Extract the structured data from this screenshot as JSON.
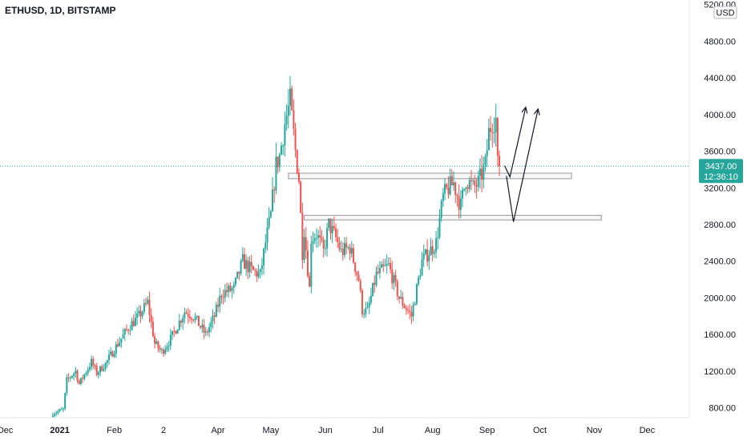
{
  "symbol_title": "ETHUSD, 1D, BITSTAMP",
  "currency": "USD",
  "colors": {
    "up": "#26a69a",
    "down": "#ef5350",
    "price_line": "#26a69a",
    "axis_text": "#131722",
    "zone_stroke": "#9598a1",
    "arrow": "#131722"
  },
  "chart_data": {
    "type": "candlestick",
    "y_axis": {
      "min": 700,
      "max": 5250,
      "ticks": [
        800,
        1200,
        1600,
        2000,
        2400,
        2800,
        3200,
        3600,
        4000,
        4400,
        4800,
        5200
      ],
      "tick_labels": [
        "800.00",
        "1200.00",
        "1600.00",
        "2000.00",
        "2400.00",
        "2800.00",
        "3200.00",
        "3600.00",
        "4000.00",
        "4400.00",
        "4800.00",
        "5200.00"
      ]
    },
    "x_axis": {
      "start": "2020-11-28",
      "end": "2021-12-25",
      "ticks": [
        {
          "date": "2020-12-01",
          "label": "Dec"
        },
        {
          "date": "2021-01-01",
          "label": "2021"
        },
        {
          "date": "2021-02-01",
          "label": "Feb"
        },
        {
          "date": "2021-03-01",
          "label": "2"
        },
        {
          "date": "2021-04-01",
          "label": "Apr"
        },
        {
          "date": "2021-05-01",
          "label": "May"
        },
        {
          "date": "2021-06-01",
          "label": "Jun"
        },
        {
          "date": "2021-07-01",
          "label": "Jul"
        },
        {
          "date": "2021-08-01",
          "label": "Aug"
        },
        {
          "date": "2021-09-01",
          "label": "Sep"
        },
        {
          "date": "2021-10-01",
          "label": "Oct"
        },
        {
          "date": "2021-11-01",
          "label": "Nov"
        },
        {
          "date": "2021-12-01",
          "label": "Dec"
        }
      ]
    },
    "series": {
      "start_date": "2020-12-28",
      "interval": "1D",
      "close_path": [
        [
          "2020-12-28",
          740
        ],
        [
          "2021-01-03",
          780
        ],
        [
          "2021-01-05",
          1100
        ],
        [
          "2021-01-10",
          1200
        ],
        [
          "2021-01-12",
          1060
        ],
        [
          "2021-01-19",
          1300
        ],
        [
          "2021-01-22",
          1180
        ],
        [
          "2021-01-27",
          1280
        ],
        [
          "2021-02-03",
          1500
        ],
        [
          "2021-02-10",
          1700
        ],
        [
          "2021-02-15",
          1800
        ],
        [
          "2021-02-20",
          1950
        ],
        [
          "2021-02-24",
          1500
        ],
        [
          "2021-02-28",
          1410
        ],
        [
          "2021-03-05",
          1550
        ],
        [
          "2021-03-13",
          1850
        ],
        [
          "2021-03-18",
          1800
        ],
        [
          "2021-03-25",
          1600
        ],
        [
          "2021-03-30",
          1800
        ],
        [
          "2021-04-03",
          2050
        ],
        [
          "2021-04-10",
          2100
        ],
        [
          "2021-04-15",
          2400
        ],
        [
          "2021-04-20",
          2300
        ],
        [
          "2021-04-25",
          2250
        ],
        [
          "2021-04-28",
          2600
        ],
        [
          "2021-05-01",
          2900
        ],
        [
          "2021-05-04",
          3450
        ],
        [
          "2021-05-06",
          3550
        ],
        [
          "2021-05-09",
          3900
        ],
        [
          "2021-05-12",
          4150
        ],
        [
          "2021-05-15",
          3600
        ],
        [
          "2021-05-17",
          3300
        ],
        [
          "2021-05-19",
          2500
        ],
        [
          "2021-05-20",
          2750
        ],
        [
          "2021-05-23",
          2100
        ],
        [
          "2021-05-24",
          2650
        ],
        [
          "2021-05-27",
          2700
        ],
        [
          "2021-05-31",
          2500
        ],
        [
          "2021-06-03",
          2800
        ],
        [
          "2021-06-07",
          2650
        ],
        [
          "2021-06-10",
          2500
        ],
        [
          "2021-06-15",
          2550
        ],
        [
          "2021-06-20",
          2200
        ],
        [
          "2021-06-22",
          1870
        ],
        [
          "2021-06-25",
          1850
        ],
        [
          "2021-06-30",
          2250
        ],
        [
          "2021-07-07",
          2350
        ],
        [
          "2021-07-13",
          2000
        ],
        [
          "2021-07-20",
          1800
        ],
        [
          "2021-07-22",
          2000
        ],
        [
          "2021-07-26",
          2400
        ],
        [
          "2021-07-30",
          2500
        ],
        [
          "2021-08-03",
          2600
        ],
        [
          "2021-08-07",
          3100
        ],
        [
          "2021-08-10",
          3200
        ],
        [
          "2021-08-13",
          3250
        ],
        [
          "2021-08-17",
          3000
        ],
        [
          "2021-08-20",
          3300
        ],
        [
          "2021-08-24",
          3200
        ],
        [
          "2021-08-27",
          3250
        ],
        [
          "2021-08-31",
          3450
        ],
        [
          "2021-09-02",
          3800
        ],
        [
          "2021-09-04",
          3930
        ],
        [
          "2021-09-06",
          3950
        ],
        [
          "2021-09-07",
          3450
        ],
        [
          "2021-09-08",
          3437
        ]
      ]
    },
    "zones": [
      {
        "name": "upper-zone",
        "from": "2021-05-11",
        "to": "2021-10-19",
        "price_low": 3300,
        "price_high": 3360
      },
      {
        "name": "lower-zone",
        "from": "2021-05-20",
        "to": "2021-11-05",
        "price_low": 2850,
        "price_high": 2900
      }
    ],
    "projections": [
      {
        "name": "upper-arrow-path",
        "points": [
          [
            "2021-09-11",
            3440
          ],
          [
            "2021-09-14",
            3320
          ],
          [
            "2021-09-23",
            4080
          ]
        ]
      },
      {
        "name": "lower-arrow-path",
        "points": [
          [
            "2021-09-12",
            3330
          ],
          [
            "2021-09-16",
            2830
          ],
          [
            "2021-09-30",
            4060
          ]
        ]
      }
    ],
    "last_price": {
      "value": 3437,
      "label": "3437.00",
      "countdown": "12:36:10"
    }
  }
}
